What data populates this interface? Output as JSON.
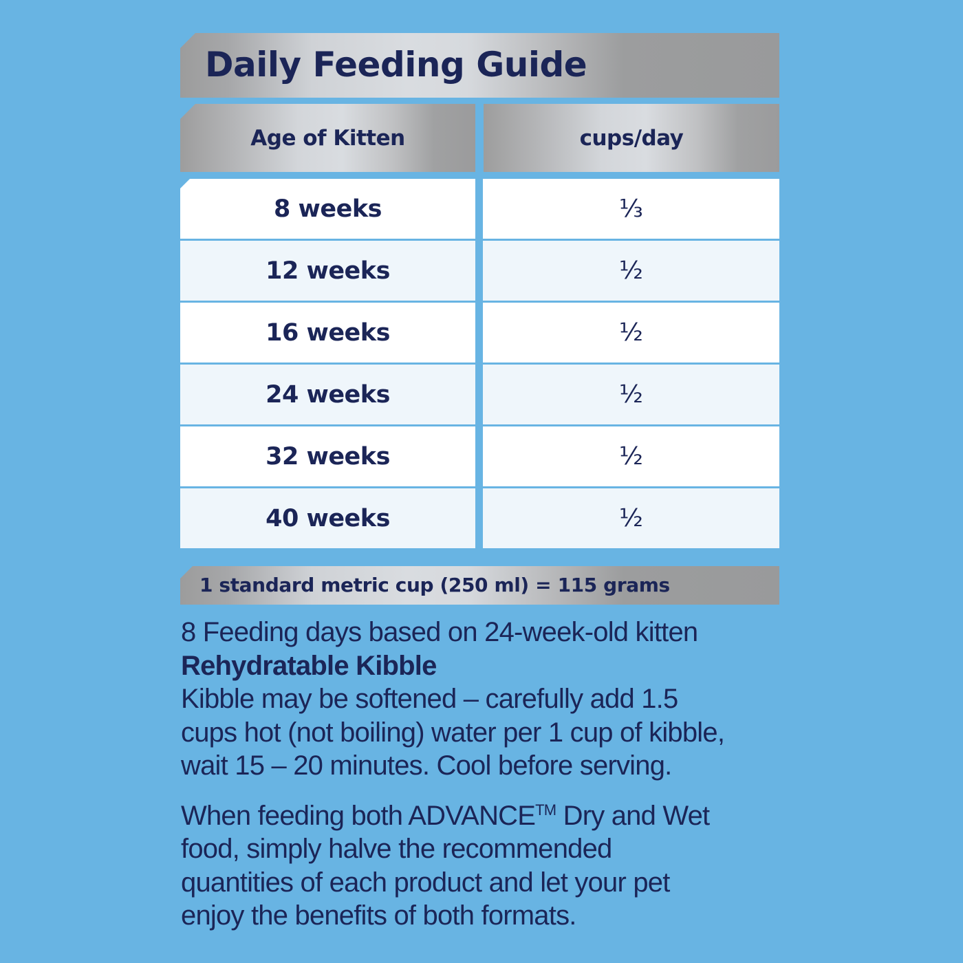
{
  "title": "Daily Feeding Guide",
  "table": {
    "headers": {
      "age": "Age of Kitten",
      "amount": "cups/day"
    },
    "rows": [
      {
        "age": "8 weeks",
        "amount": "⅓"
      },
      {
        "age": "12 weeks",
        "amount": "½"
      },
      {
        "age": "16 weeks",
        "amount": "½"
      },
      {
        "age": "24 weeks",
        "amount": "½"
      },
      {
        "age": "32 weeks",
        "amount": "½"
      },
      {
        "age": "40 weeks",
        "amount": "½"
      }
    ]
  },
  "conversion_note": "1 standard metric cup (250 ml) = 115 grams",
  "notes": {
    "feeding_days": "8 Feeding days based on 24-week-old kitten",
    "kibble_heading": "Rehydratable Kibble",
    "kibble_line1": "Kibble may be softened – carefully add 1.5",
    "kibble_line2": "cups hot (not boiling) water per 1 cup of kibble,",
    "kibble_line3": "wait 15 – 20 minutes.  Cool before serving.",
    "combo_line1_pre": "When feeding both ADVANCE",
    "combo_tm": "TM",
    "combo_line1_post": " Dry and Wet",
    "combo_line2": "food, simply halve the recommended",
    "combo_line3": "quantities of each product and let your pet",
    "combo_line4": "enjoy the benefits of both formats."
  },
  "colors": {
    "background": "#68b4e3",
    "text_navy": "#1b2557",
    "row_white": "#ffffff",
    "row_light": "#eff6fb",
    "metal_light": "#d9dce0",
    "metal_dark": "#999a9b"
  }
}
